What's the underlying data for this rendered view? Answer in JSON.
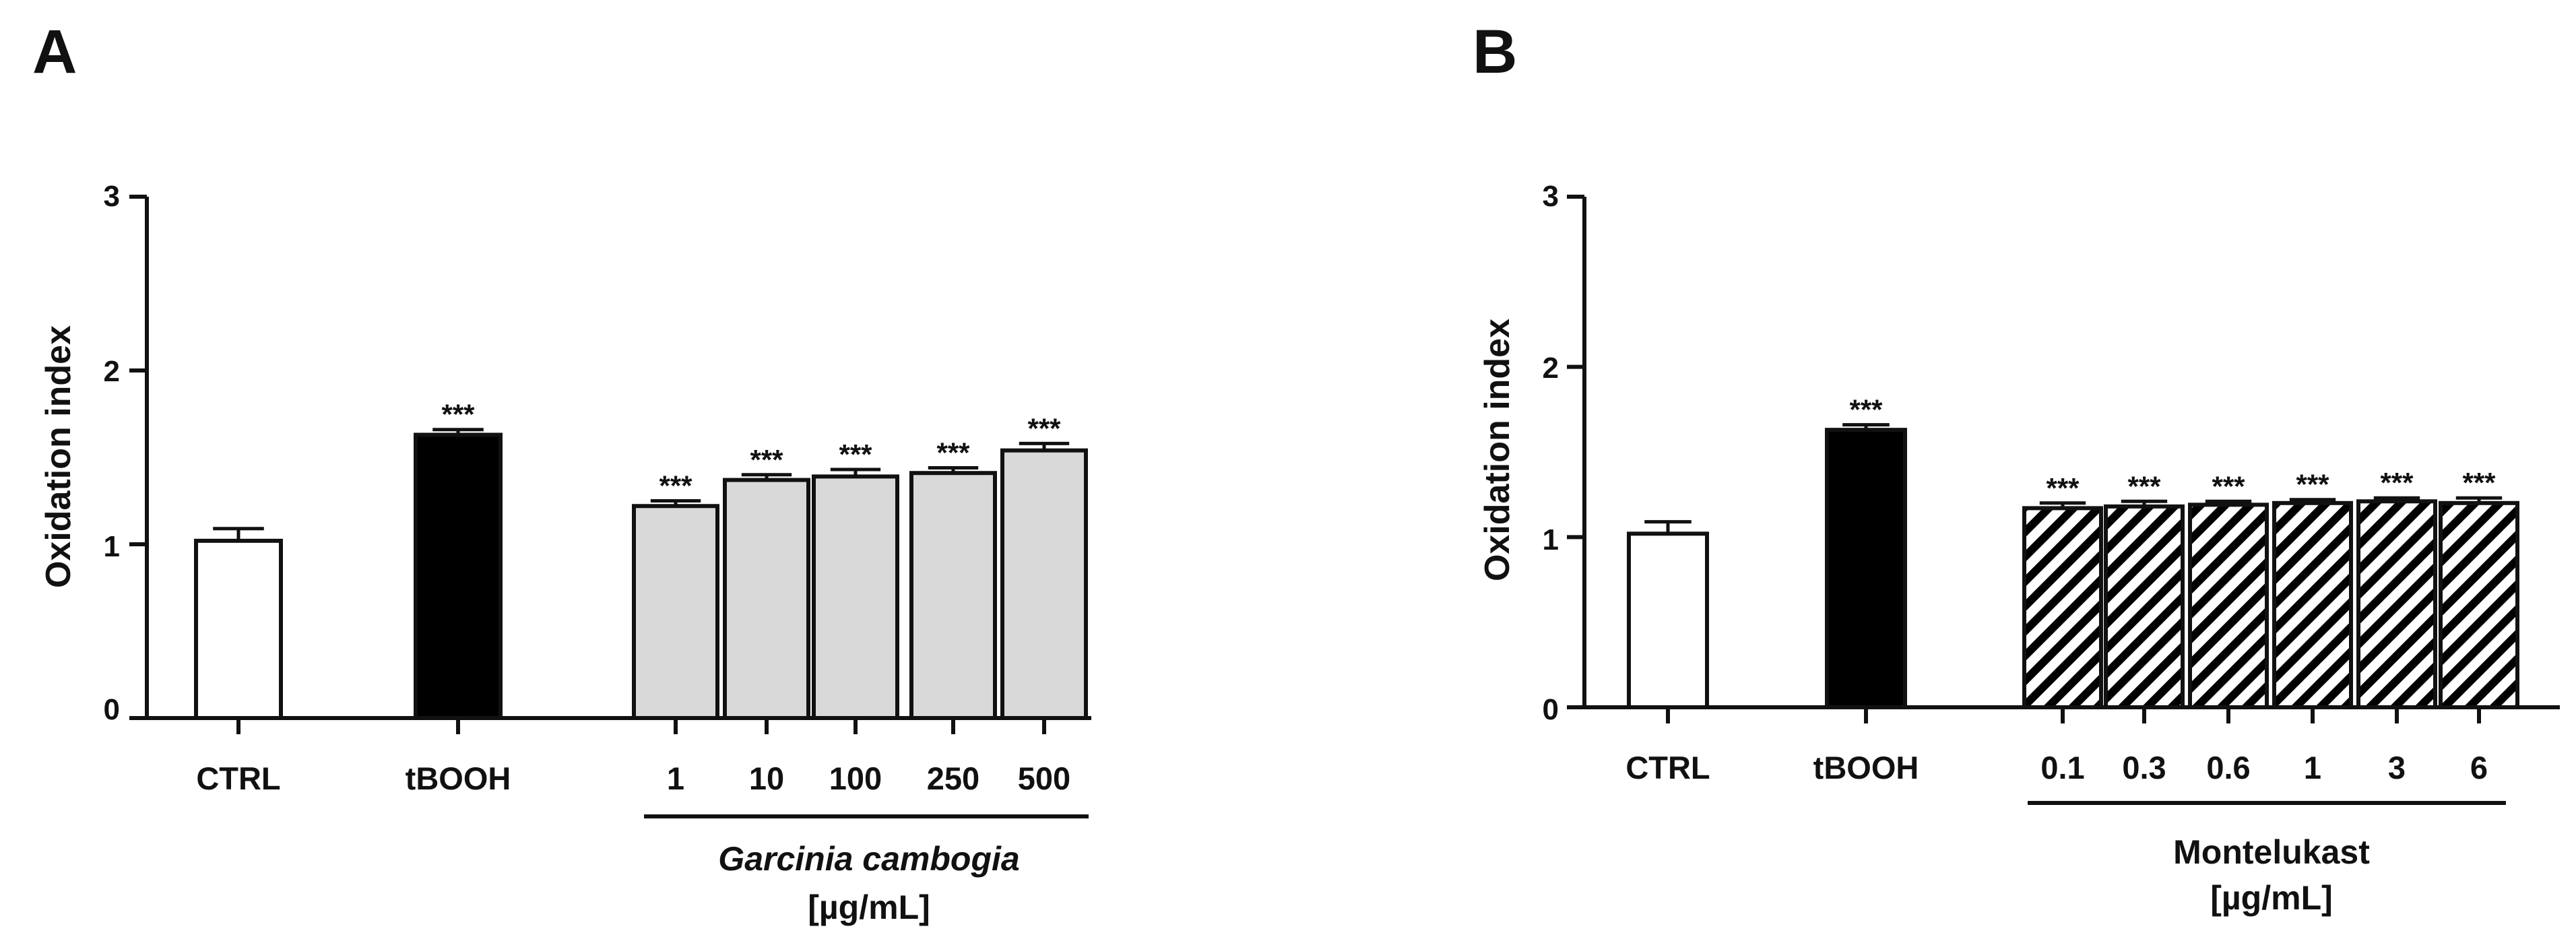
{
  "colors": {
    "ink": "#111111",
    "ctrl_fill": "#ffffff",
    "tbooh_fill": "#000000",
    "gc_fill": "#d9d9d9",
    "mk_fill": "#ffffff",
    "hatch": "#000000"
  },
  "chart_data": [
    {
      "panel": "A",
      "type": "bar",
      "ylabel": "Oxidation index",
      "ylim": [
        0,
        3
      ],
      "yticks": [
        "0",
        "1",
        "2",
        "3"
      ],
      "categories": [
        "CTRL",
        "tBOOH",
        "1",
        "10",
        "100",
        "250",
        "500"
      ],
      "values": [
        1.02,
        1.63,
        1.22,
        1.37,
        1.39,
        1.41,
        1.54
      ],
      "errors": [
        0.07,
        0.03,
        0.03,
        0.03,
        0.04,
        0.03,
        0.04
      ],
      "significance": [
        "",
        "***",
        "***",
        "***",
        "***",
        "***",
        "***"
      ],
      "styles": [
        "ctrl",
        "tbooh",
        "gc",
        "gc",
        "gc",
        "gc",
        "gc"
      ],
      "group_label": "Garcinia cambogia",
      "group_unit": "[µg/mL]"
    },
    {
      "panel": "B",
      "type": "bar",
      "ylabel": "Oxidation index",
      "ylim": [
        0,
        3
      ],
      "yticks": [
        "0",
        "1",
        "2",
        "3"
      ],
      "categories": [
        "CTRL",
        "tBOOH",
        "0.1",
        "0.3",
        "0.6",
        "1",
        "3",
        "6"
      ],
      "values": [
        1.02,
        1.63,
        1.17,
        1.18,
        1.19,
        1.2,
        1.21,
        1.2
      ],
      "errors": [
        0.07,
        0.03,
        0.03,
        0.03,
        0.02,
        0.02,
        0.02,
        0.03
      ],
      "significance": [
        "",
        "***",
        "***",
        "***",
        "***",
        "***",
        "***",
        "***"
      ],
      "styles": [
        "ctrl",
        "tbooh",
        "mk",
        "mk",
        "mk",
        "mk",
        "mk",
        "mk"
      ],
      "group_label": "Montelukast",
      "group_unit": "[µg/mL]"
    }
  ]
}
